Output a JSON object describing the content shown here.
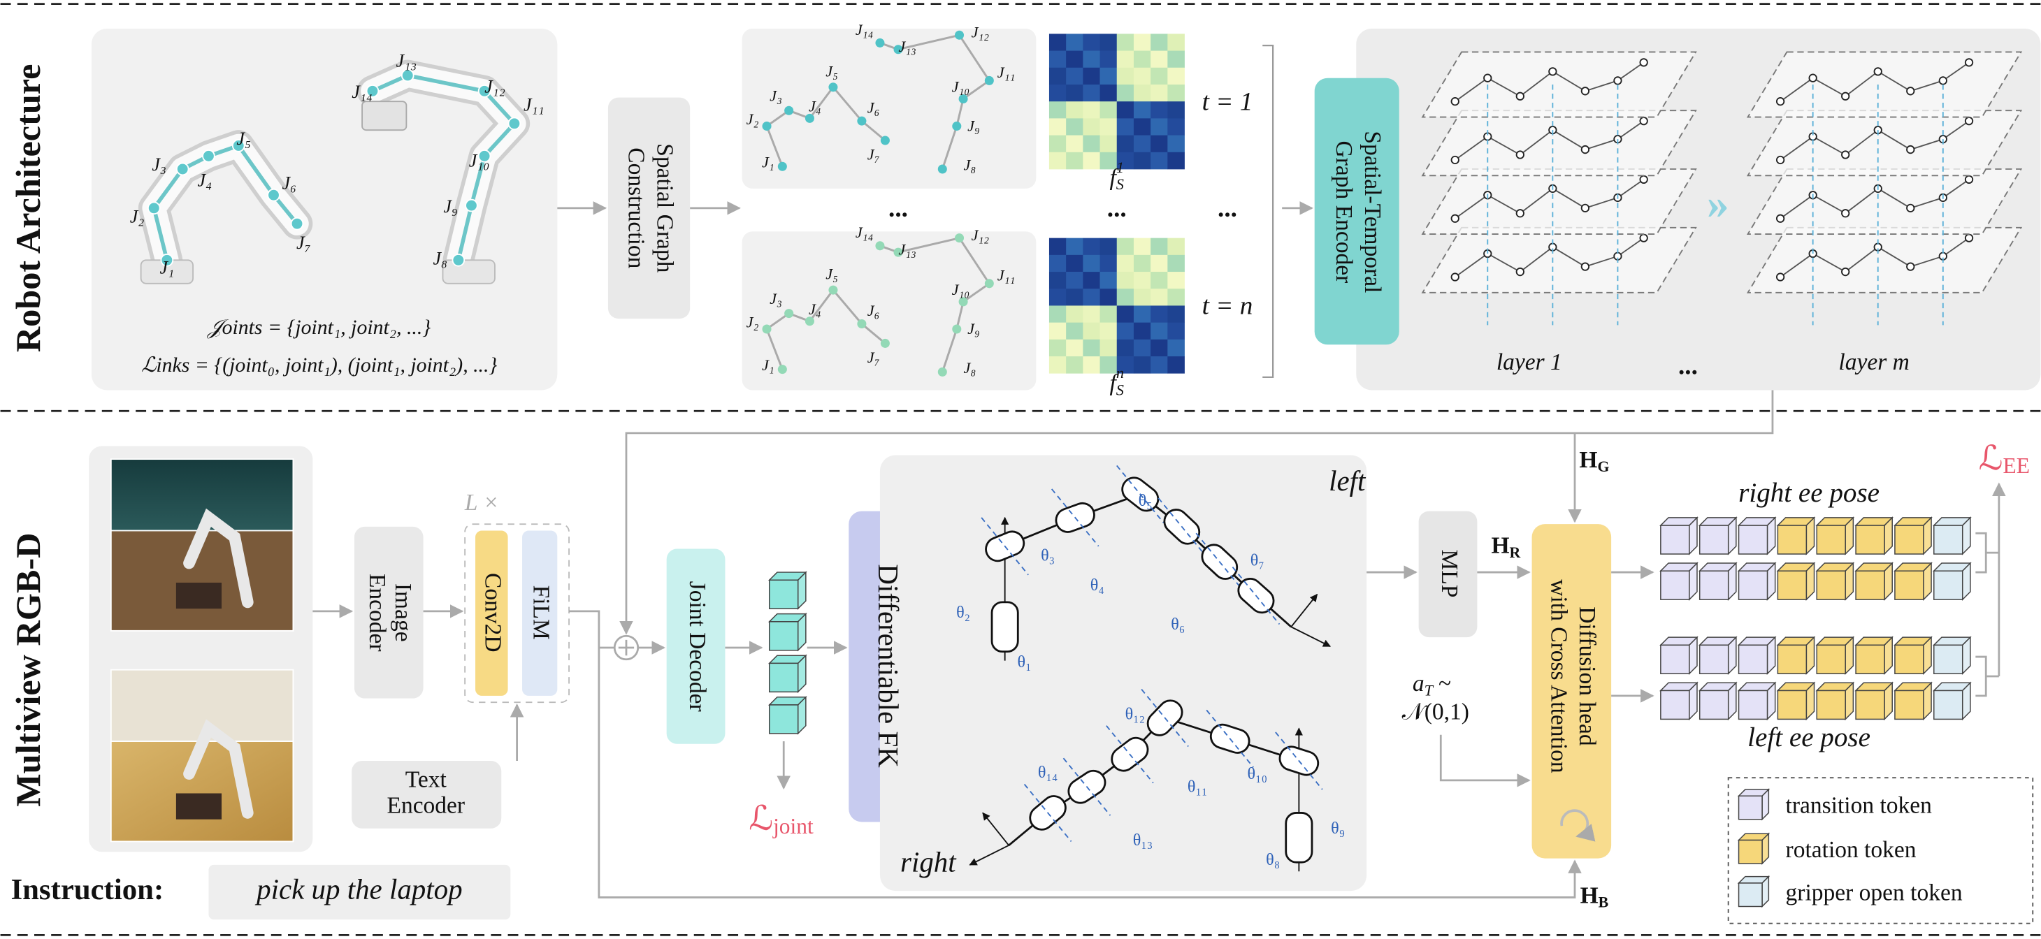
{
  "robot_architecture": {
    "section_label": "Robot Architecture",
    "joint_labels": [
      "J₁",
      "J₂",
      "J₃",
      "J₄",
      "J₅",
      "J₆",
      "J₇",
      "J₈",
      "J₉",
      "J₁₀",
      "J₁₁",
      "J₁₂",
      "J₁₃",
      "J₁₄"
    ],
    "joints_set": "𝒥oints = {joint₁, joint₂, ...}",
    "links_set": "ℒinks = {(joint₀, joint₁), (joint₁, joint₂), ...}",
    "spatial_graph_construction": [
      "Spatial Graph",
      "Construction"
    ],
    "ellipsis": "...",
    "time_steps": [
      "t = 1",
      "t = n"
    ],
    "feature_maps": [
      {
        "base": "f",
        "sub": "S",
        "sup": "1"
      },
      {
        "base": "f",
        "sub": "S",
        "sup": "n"
      }
    ],
    "encoder": [
      "Spatial-Temporal",
      "Graph Encoder"
    ],
    "layers": [
      "layer 1",
      "layer m"
    ]
  },
  "multiview": {
    "section_label": "Multiview RGB-D",
    "image_encoder": [
      "Image",
      "Encoder"
    ],
    "repeat": "L ×",
    "conv2d": "Conv2D",
    "film": "FiLM",
    "text_encoder": [
      "Text",
      "Encoder"
    ],
    "instruction_label": "Instruction:",
    "instruction": "pick up the laptop",
    "joint_decoder": "Joint Decoder",
    "joint_loss": {
      "symbol": "ℒ",
      "sub": "joint"
    },
    "differentiable_fk": "Differentiable FK",
    "arm_labels": [
      "left",
      "right"
    ],
    "angles": [
      "θ₁",
      "θ₂",
      "θ₃",
      "θ₄",
      "θ₅",
      "θ₆",
      "θ₇",
      "θ₈",
      "θ₉",
      "θ₁₀",
      "θ₁₁",
      "θ₁₂",
      "θ₁₃",
      "θ₁₄"
    ],
    "mlp": "MLP",
    "h_g": {
      "symbol": "H",
      "sub": "G"
    },
    "h_r": {
      "symbol": "H",
      "sub": "R"
    },
    "h_b": {
      "symbol": "H",
      "sub": "B"
    },
    "noise": {
      "symbol": "a",
      "sub": "T",
      "relation": "~",
      "distribution": "𝒩(0,1)"
    },
    "diffusion_head": [
      "Diffusion head",
      "with Cross Attention"
    ],
    "pose_labels": [
      "right ee pose",
      "left ee pose"
    ],
    "ee_loss": {
      "symbol": "ℒ",
      "sub": "EE"
    },
    "legend": [
      "transition token",
      "rotation token",
      "gripper open token"
    ]
  }
}
